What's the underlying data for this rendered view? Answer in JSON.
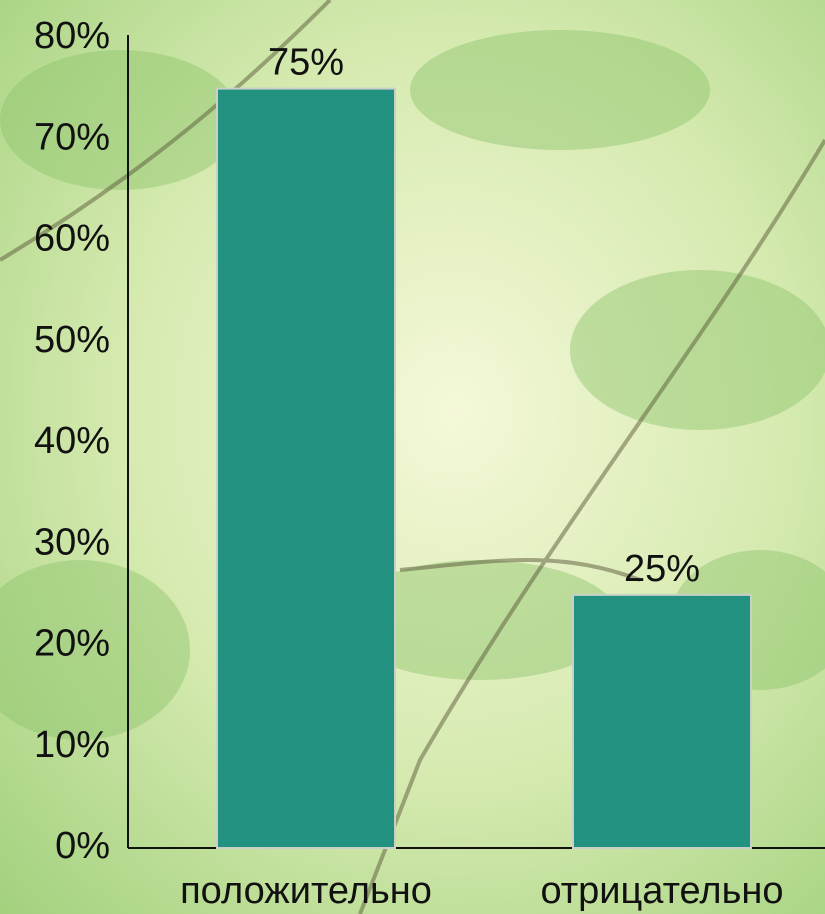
{
  "chart_data": {
    "type": "bar",
    "categories": [
      "положительно",
      "отрицательно"
    ],
    "values": [
      75,
      25
    ],
    "value_labels": [
      "75%",
      "25%"
    ],
    "color": "#23917f",
    "ylim": [
      0,
      80
    ],
    "yticks": [
      {
        "value": 0,
        "label": "0%"
      },
      {
        "value": 10,
        "label": "10%"
      },
      {
        "value": 20,
        "label": "20%"
      },
      {
        "value": 30,
        "label": "30%"
      },
      {
        "value": 40,
        "label": "40%"
      },
      {
        "value": 50,
        "label": "50%"
      },
      {
        "value": 60,
        "label": "60%"
      },
      {
        "value": 70,
        "label": "70%"
      },
      {
        "value": 80,
        "label": "80%"
      }
    ]
  }
}
